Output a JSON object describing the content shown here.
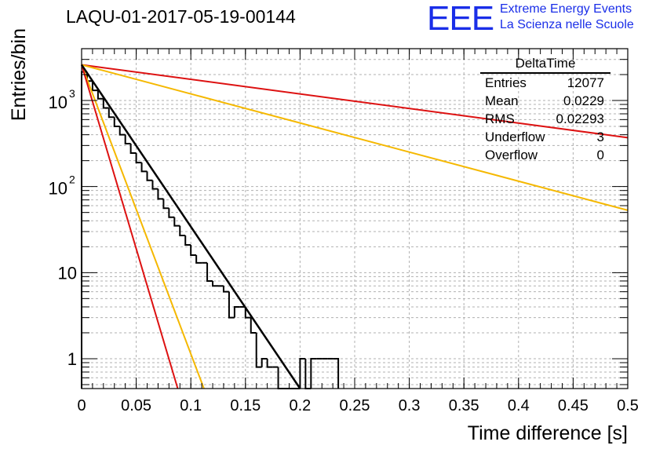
{
  "header": {
    "run_title": "LAQU-01-2017-05-19-00144",
    "logo_text": "EEE",
    "logo_line1": "Extreme Energy Events",
    "logo_line2": "La Scienza nelle Scuole"
  },
  "stats_box": {
    "title": "DeltaTime",
    "rows": [
      {
        "label": "Entries",
        "value": "12077"
      },
      {
        "label": "Mean",
        "value": "0.0229"
      },
      {
        "label": "RMS",
        "value": "0.02293"
      },
      {
        "label": "Underflow",
        "value": "3"
      },
      {
        "label": "Overflow",
        "value": "0"
      }
    ]
  },
  "chart_data": {
    "type": "histogram",
    "yscale": "log",
    "xlabel": "Time difference [s]",
    "ylabel": "Entries/bin",
    "xlim": [
      0,
      0.5
    ],
    "ylim": [
      0.45,
      4000
    ],
    "grid": true,
    "x_ticks": [
      0,
      0.05,
      0.1,
      0.15,
      0.2,
      0.25,
      0.3,
      0.35,
      0.4,
      0.45,
      0.5
    ],
    "x_tick_labels": [
      "0",
      "0.05",
      "0.1",
      "0.15",
      "0.2",
      "0.25",
      "0.3",
      "0.35",
      "0.4",
      "0.45",
      "0.5"
    ],
    "y_ticks": [
      1,
      10,
      100,
      1000
    ],
    "y_tick_labels": [
      {
        "base": "1",
        "exp": ""
      },
      {
        "base": "10",
        "exp": ""
      },
      {
        "base": "10",
        "exp": "2"
      },
      {
        "base": "10",
        "exp": "3"
      }
    ],
    "colors": {
      "histogram": "#000000",
      "fit": "#000000",
      "red": "#dd1111",
      "yellow": "#f5b800"
    },
    "histogram": {
      "bin_width": 0.005,
      "counts": [
        2150,
        1680,
        1310,
        1050,
        820,
        640,
        500,
        400,
        315,
        245,
        190,
        150,
        118,
        94,
        72,
        56,
        44,
        35,
        27,
        21,
        16,
        13,
        13,
        8,
        7,
        7,
        6,
        3,
        4,
        4,
        3,
        2,
        0.8,
        1,
        0.8,
        0.8,
        0.3,
        0.3,
        0.3,
        0.3,
        1,
        0.3,
        1,
        1,
        1,
        1,
        1
      ]
    },
    "fit_line": {
      "name": "exponential fit",
      "x": [
        0.0,
        0.2
      ],
      "y": [
        2600,
        0.45
      ]
    },
    "reference_lines": [
      {
        "name": "red slow",
        "color": "red",
        "x": [
          0.0,
          0.5
        ],
        "y": [
          2600,
          370
        ]
      },
      {
        "name": "yellow slow",
        "color": "yellow",
        "x": [
          0.0,
          0.5
        ],
        "y": [
          2600,
          53
        ]
      },
      {
        "name": "yellow fast",
        "color": "yellow",
        "x": [
          0.0,
          0.112
        ],
        "y": [
          2600,
          0.45
        ]
      },
      {
        "name": "red fast",
        "color": "red",
        "x": [
          0.0,
          0.088
        ],
        "y": [
          2600,
          0.45
        ]
      }
    ]
  }
}
